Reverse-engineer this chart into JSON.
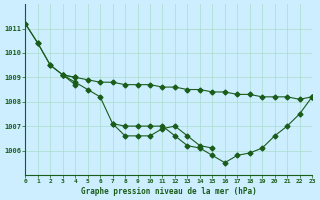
{
  "title": "Graphe pression niveau de la mer (hPa)",
  "background_color": "#cceeff",
  "grid_color": "#aaddcc",
  "line_color": "#1a5c1a",
  "xlim": [
    0,
    23
  ],
  "ylim": [
    1005.0,
    1012.0
  ],
  "yticks": [
    1006,
    1007,
    1008,
    1009,
    1010,
    1011
  ],
  "xticks": [
    0,
    1,
    2,
    3,
    4,
    5,
    6,
    7,
    8,
    9,
    10,
    11,
    12,
    13,
    14,
    15,
    16,
    17,
    18,
    19,
    20,
    21,
    22,
    23
  ],
  "series": [
    {
      "x": [
        0,
        1,
        2,
        3,
        4,
        5,
        6,
        7,
        8,
        9,
        10,
        11,
        12,
        13,
        14,
        15,
        16,
        17,
        18,
        19,
        20,
        21,
        22,
        23
      ],
      "y": [
        1011.2,
        1010.4,
        1009.5,
        1009.1,
        1009.0,
        null,
        null,
        1007.1,
        1006.6,
        1006.6,
        1006.6,
        1006.9,
        1007.0,
        1006.6,
        1006.2,
        1006.1,
        null,
        null,
        null,
        null,
        null,
        null,
        null,
        1008.2
      ]
    },
    {
      "x": [
        0,
        1,
        2,
        3,
        4,
        5,
        6,
        7,
        8,
        9,
        10,
        11,
        12,
        13,
        14,
        15,
        16,
        17,
        18,
        19,
        20,
        21,
        22,
        23
      ],
      "y": [
        null,
        null,
        null,
        1009.1,
        1008.7,
        null,
        null,
        null,
        null,
        null,
        null,
        null,
        null,
        null,
        null,
        null,
        null,
        null,
        null,
        null,
        null,
        null,
        null,
        null
      ]
    },
    {
      "x": [
        0,
        1,
        2,
        3,
        4,
        5,
        6,
        7,
        8,
        9,
        10,
        11,
        12,
        13,
        14,
        15,
        16,
        17,
        18,
        19,
        20,
        21,
        22,
        23
      ],
      "y": [
        1011.2,
        1010.4,
        1009.5,
        1009.1,
        1009.0,
        1008.9,
        1008.8,
        1008.8,
        1008.7,
        1008.7,
        1008.7,
        1008.6,
        1008.6,
        1008.5,
        1008.5,
        1008.4,
        1008.4,
        1008.3,
        1008.3,
        1008.2,
        1008.2,
        1008.2,
        1008.1,
        1008.2
      ]
    },
    {
      "x": [
        3,
        4,
        5,
        6,
        7,
        8,
        9,
        10,
        11,
        12,
        13,
        14,
        15,
        16,
        17,
        18,
        19,
        20,
        21,
        22,
        23
      ],
      "y": [
        1009.1,
        1008.8,
        1008.5,
        1008.2,
        1007.1,
        1007.0,
        1007.0,
        1007.0,
        1007.0,
        1006.6,
        1006.2,
        1006.1,
        1005.8,
        1005.5,
        1005.8,
        1005.9,
        1006.1,
        1006.6,
        1007.0,
        1007.5,
        1008.2
      ]
    }
  ]
}
